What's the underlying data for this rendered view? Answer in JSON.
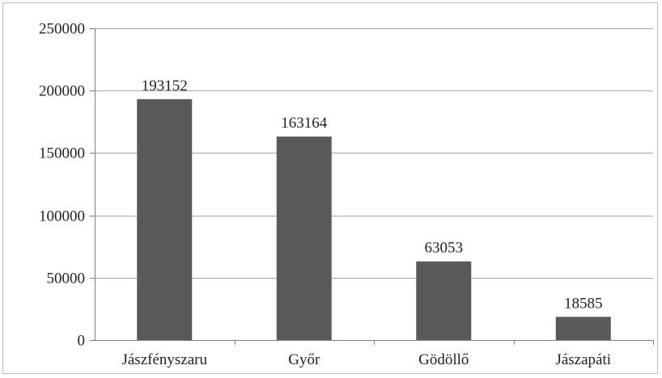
{
  "chart_data": {
    "type": "bar",
    "title": "",
    "xlabel": "",
    "ylabel": "",
    "categories": [
      "Jászfényszaru",
      "Győr",
      "Gödöllő",
      "Jászapáti"
    ],
    "values": [
      193152,
      163164,
      63053,
      18585
    ],
    "value_labels": [
      "193152",
      "163164",
      "63053",
      "18585"
    ],
    "ylim": [
      0,
      250000
    ],
    "y_ticks": [
      0,
      50000,
      100000,
      150000,
      200000,
      250000
    ],
    "y_tick_labels": [
      "0",
      "50000",
      "100000",
      "150000",
      "200000",
      "250000"
    ],
    "grid": true,
    "legend": "none",
    "colors": {
      "bar": "#595959",
      "grid": "#a6a6a6",
      "axis": "#7f7f7f"
    }
  }
}
